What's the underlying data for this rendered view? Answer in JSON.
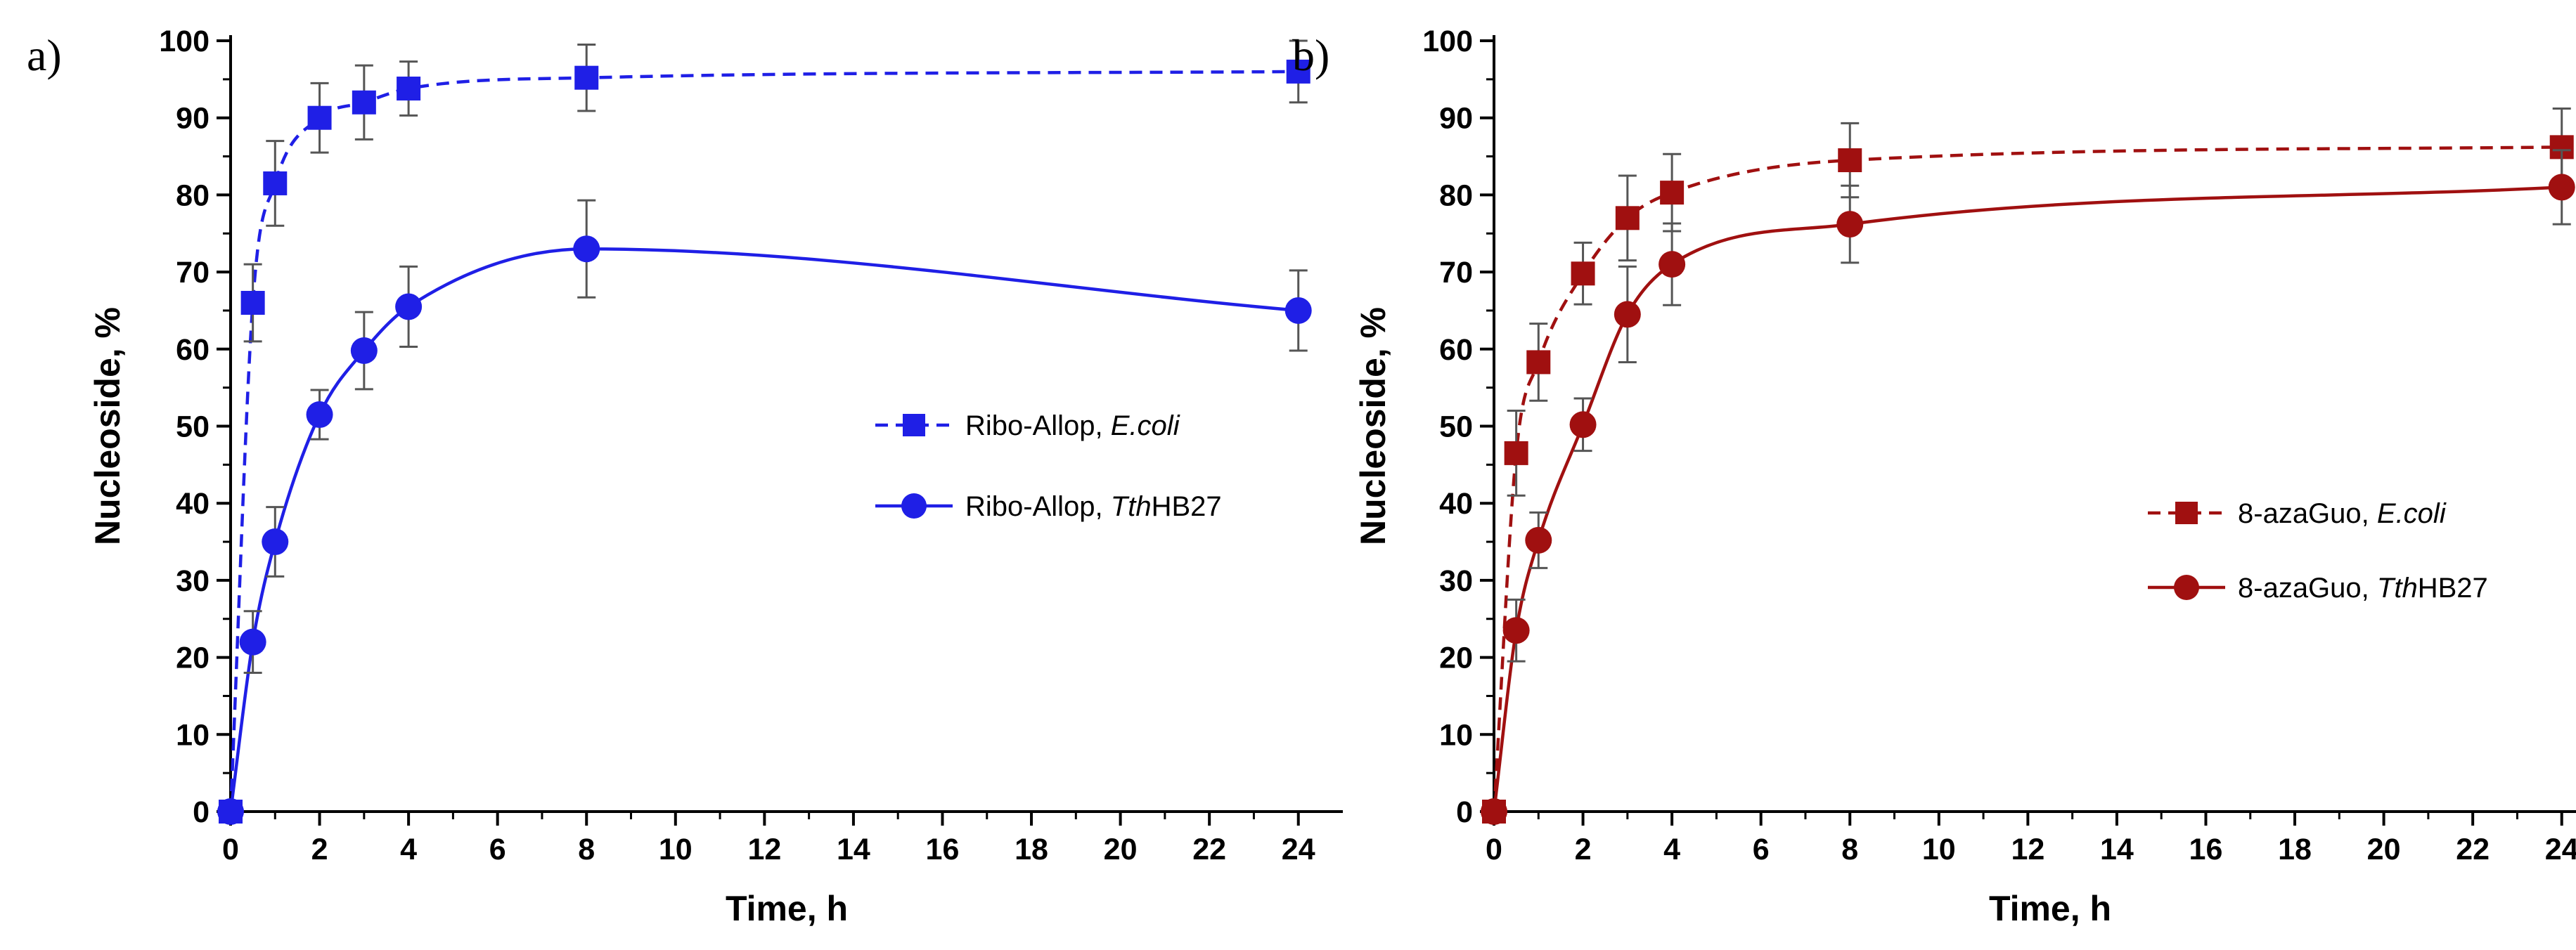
{
  "chart_data": [
    {
      "type": "line",
      "panel_label": "a)",
      "xlabel": "Time, h",
      "ylabel": "Nucleoside, %",
      "xlim": [
        0,
        25
      ],
      "ylim": [
        0,
        100
      ],
      "x_ticks": [
        0,
        2,
        4,
        6,
        8,
        10,
        12,
        14,
        16,
        18,
        20,
        22,
        24
      ],
      "y_ticks": [
        0,
        10,
        20,
        30,
        40,
        50,
        60,
        70,
        80,
        90,
        100
      ],
      "grid": false,
      "legend_position": "right-middle",
      "series": [
        {
          "name": "Ribo-Allop, E.coli",
          "legend_parts": [
            {
              "text": "Ribo-Allop, ",
              "italic": false
            },
            {
              "text": "E.coli",
              "italic": true
            }
          ],
          "color": "#1f1fe6",
          "marker": "square",
          "line_style": "dashed",
          "x": [
            0,
            0.5,
            1,
            2,
            3,
            4,
            8,
            24
          ],
          "y": [
            0,
            66,
            81.5,
            90,
            92,
            93.8,
            95.2,
            96
          ],
          "error": [
            0,
            5,
            5.5,
            4.5,
            4.8,
            3.5,
            4.3,
            4
          ]
        },
        {
          "name": "Ribo-Allop, TthHB27",
          "legend_parts": [
            {
              "text": "Ribo-Allop, ",
              "italic": false
            },
            {
              "text": "Tth",
              "italic": true
            },
            {
              "text": "HB27",
              "italic": false
            }
          ],
          "color": "#1f1fe6",
          "marker": "circle",
          "line_style": "solid",
          "x": [
            0,
            0.5,
            1,
            2,
            3,
            4,
            8,
            24
          ],
          "y": [
            0,
            22,
            35,
            51.5,
            59.8,
            65.5,
            73,
            65
          ],
          "error": [
            0,
            4,
            4.5,
            3.2,
            5,
            5.2,
            6.3,
            5.2
          ]
        }
      ]
    },
    {
      "type": "line",
      "panel_label": "b)",
      "xlabel": "Time, h",
      "ylabel": "Nucleoside, %",
      "xlim": [
        0,
        25
      ],
      "ylim": [
        0,
        100
      ],
      "x_ticks": [
        0,
        2,
        4,
        6,
        8,
        10,
        12,
        14,
        16,
        18,
        20,
        22,
        24
      ],
      "y_ticks": [
        0,
        10,
        20,
        30,
        40,
        50,
        60,
        70,
        80,
        90,
        100
      ],
      "grid": false,
      "legend_position": "right-middle",
      "series": [
        {
          "name": "8-azaGuo, E.coli",
          "legend_parts": [
            {
              "text": "8-azaGuo, ",
              "italic": false
            },
            {
              "text": "E.coli",
              "italic": true
            }
          ],
          "color": "#a01010",
          "marker": "square",
          "line_style": "dashed",
          "x": [
            0,
            0.5,
            1,
            2,
            3,
            4,
            8,
            24
          ],
          "y": [
            0,
            46.5,
            58.3,
            69.8,
            77,
            80.3,
            84.5,
            86.2
          ],
          "error": [
            0,
            5.5,
            5,
            4,
            5.5,
            5,
            4.8,
            5
          ]
        },
        {
          "name": "8-azaGuo, TthHB27",
          "legend_parts": [
            {
              "text": "8-azaGuo, ",
              "italic": false
            },
            {
              "text": "Tth",
              "italic": true
            },
            {
              "text": "HB27",
              "italic": false
            }
          ],
          "color": "#a01010",
          "marker": "circle",
          "line_style": "solid",
          "x": [
            0,
            0.5,
            1,
            2,
            3,
            4,
            8,
            24
          ],
          "y": [
            0,
            23.5,
            35.2,
            50.2,
            64.5,
            71,
            76.2,
            81
          ],
          "error": [
            0,
            4,
            3.6,
            3.4,
            6.2,
            5.3,
            5,
            4.8
          ]
        }
      ]
    }
  ]
}
